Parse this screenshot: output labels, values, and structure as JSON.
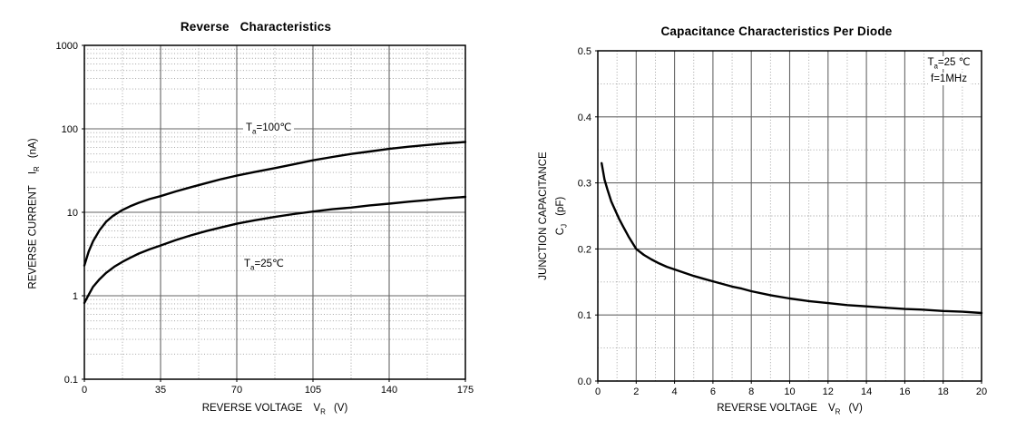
{
  "colors": {
    "background": "#ffffff",
    "curve": "#000000",
    "grid_major": "#666666",
    "grid_minor": "#999999",
    "frame": "#000000"
  },
  "chart_data": [
    {
      "type": "line",
      "title": "Reverse   Characteristics",
      "x_axis": {
        "label": "REVERSE VOLTAGE",
        "symbol": "V",
        "symbol_sub": "R",
        "unit": "(V)",
        "range": [
          0,
          175
        ],
        "scale": "linear",
        "ticks": [
          {
            "v": 0,
            "label": "0"
          },
          {
            "v": 35,
            "label": "35"
          },
          {
            "v": 70,
            "label": "70"
          },
          {
            "v": 105,
            "label": "105"
          },
          {
            "v": 140,
            "label": "140"
          },
          {
            "v": 175,
            "label": "175"
          }
        ]
      },
      "y_axis": {
        "label": "REVERSE CURRENT",
        "symbol": "I",
        "symbol_sub": "R",
        "unit": "(nA)",
        "range": [
          0.1,
          1000
        ],
        "scale": "log",
        "ticks": [
          {
            "v": 1000,
            "label": "1000"
          },
          {
            "v": 100,
            "label": "100"
          },
          {
            "v": 10,
            "label": "10"
          },
          {
            "v": 1,
            "label": "1"
          },
          {
            "v": 0.1,
            "label": "0.1"
          }
        ]
      },
      "annotations": [
        {
          "symbol": "T",
          "sub": "a",
          "rest": "=100℃"
        },
        {
          "symbol": "T",
          "sub": "a",
          "rest": "=25℃"
        }
      ],
      "series": [
        {
          "name": "Ta=100C",
          "points": [
            [
              0,
              2.3
            ],
            [
              2,
              3.4
            ],
            [
              4,
              4.5
            ],
            [
              7,
              6.1
            ],
            [
              10,
              7.7
            ],
            [
              13,
              9.0
            ],
            [
              17,
              10.5
            ],
            [
              21,
              11.8
            ],
            [
              25,
              13.0
            ],
            [
              30,
              14.4
            ],
            [
              35,
              15.6
            ],
            [
              42,
              17.8
            ],
            [
              49,
              20.0
            ],
            [
              56,
              22.4
            ],
            [
              63,
              25.0
            ],
            [
              70,
              27.5
            ],
            [
              78,
              30.3
            ],
            [
              87.5,
              33.8
            ],
            [
              96,
              37.5
            ],
            [
              105,
              42.0
            ],
            [
              114,
              46.0
            ],
            [
              122.5,
              50.0
            ],
            [
              131,
              53.5
            ],
            [
              140,
              57.5
            ],
            [
              149,
              61.0
            ],
            [
              157.5,
              64.0
            ],
            [
              166,
              67.0
            ],
            [
              175,
              69.5
            ]
          ]
        },
        {
          "name": "Ta=25C",
          "points": [
            [
              0,
              0.82
            ],
            [
              1,
              0.92
            ],
            [
              2,
              1.03
            ],
            [
              4,
              1.28
            ],
            [
              7,
              1.58
            ],
            [
              10,
              1.88
            ],
            [
              14,
              2.25
            ],
            [
              17.5,
              2.55
            ],
            [
              21,
              2.85
            ],
            [
              25,
              3.2
            ],
            [
              30,
              3.6
            ],
            [
              35,
              4.0
            ],
            [
              42,
              4.65
            ],
            [
              49,
              5.3
            ],
            [
              56,
              5.95
            ],
            [
              63,
              6.6
            ],
            [
              70,
              7.3
            ],
            [
              78,
              8.0
            ],
            [
              87.5,
              8.8
            ],
            [
              96,
              9.5
            ],
            [
              105,
              10.2
            ],
            [
              114,
              10.9
            ],
            [
              122.5,
              11.4
            ],
            [
              131,
              12.1
            ],
            [
              140,
              12.7
            ],
            [
              149,
              13.4
            ],
            [
              157.5,
              14.0
            ],
            [
              166,
              14.7
            ],
            [
              175,
              15.3
            ]
          ]
        }
      ]
    },
    {
      "type": "line",
      "title": "Capacitance Characteristics Per Diode",
      "x_axis": {
        "label": "REVERSE VOLTAGE",
        "symbol": "V",
        "symbol_sub": "R",
        "unit": "(V)",
        "range": [
          0,
          20
        ],
        "scale": "linear",
        "ticks": [
          {
            "v": 0,
            "label": "0"
          },
          {
            "v": 2,
            "label": "2"
          },
          {
            "v": 4,
            "label": "4"
          },
          {
            "v": 6,
            "label": "6"
          },
          {
            "v": 8,
            "label": "8"
          },
          {
            "v": 10,
            "label": "10"
          },
          {
            "v": 12,
            "label": "12"
          },
          {
            "v": 14,
            "label": "14"
          },
          {
            "v": 16,
            "label": "16"
          },
          {
            "v": 18,
            "label": "18"
          },
          {
            "v": 20,
            "label": "20"
          }
        ]
      },
      "y_axis": {
        "label": "JUNCTION CAPACITANCE",
        "symbol": "C",
        "symbol_sub": "J",
        "unit": "(pF)",
        "range": [
          0,
          0.5
        ],
        "scale": "linear",
        "ticks": [
          {
            "v": 0.5,
            "label": "0.5"
          },
          {
            "v": 0.4,
            "label": "0.4"
          },
          {
            "v": 0.3,
            "label": "0.3"
          },
          {
            "v": 0.2,
            "label": "0.2"
          },
          {
            "v": 0.1,
            "label": "0.1"
          },
          {
            "v": 0,
            "label": "0.0"
          }
        ]
      },
      "annotations": [
        {
          "symbol": "T",
          "sub": "a",
          "rest": "=25 ℃"
        },
        {
          "symbol": "",
          "sub": "",
          "rest": "f=1MHz"
        }
      ],
      "series": [
        {
          "name": "Cj",
          "points": [
            [
              0.2,
              0.33
            ],
            [
              0.35,
              0.305
            ],
            [
              0.5,
              0.29
            ],
            [
              0.7,
              0.272
            ],
            [
              0.9,
              0.259
            ],
            [
              1.1,
              0.246
            ],
            [
              1.3,
              0.235
            ],
            [
              1.6,
              0.219
            ],
            [
              2,
              0.2
            ],
            [
              2.4,
              0.191
            ],
            [
              2.8,
              0.184
            ],
            [
              3.2,
              0.178
            ],
            [
              3.6,
              0.173
            ],
            [
              4,
              0.169
            ],
            [
              4.5,
              0.164
            ],
            [
              5,
              0.159
            ],
            [
              5.5,
              0.155
            ],
            [
              6,
              0.151
            ],
            [
              6.5,
              0.147
            ],
            [
              7,
              0.143
            ],
            [
              7.5,
              0.14
            ],
            [
              8,
              0.136
            ],
            [
              9,
              0.13
            ],
            [
              10,
              0.125
            ],
            [
              11,
              0.121
            ],
            [
              12,
              0.118
            ],
            [
              13,
              0.115
            ],
            [
              14,
              0.113
            ],
            [
              15,
              0.111
            ],
            [
              16,
              0.109
            ],
            [
              17,
              0.108
            ],
            [
              18,
              0.106
            ],
            [
              19,
              0.105
            ],
            [
              20,
              0.103
            ]
          ]
        }
      ]
    }
  ]
}
